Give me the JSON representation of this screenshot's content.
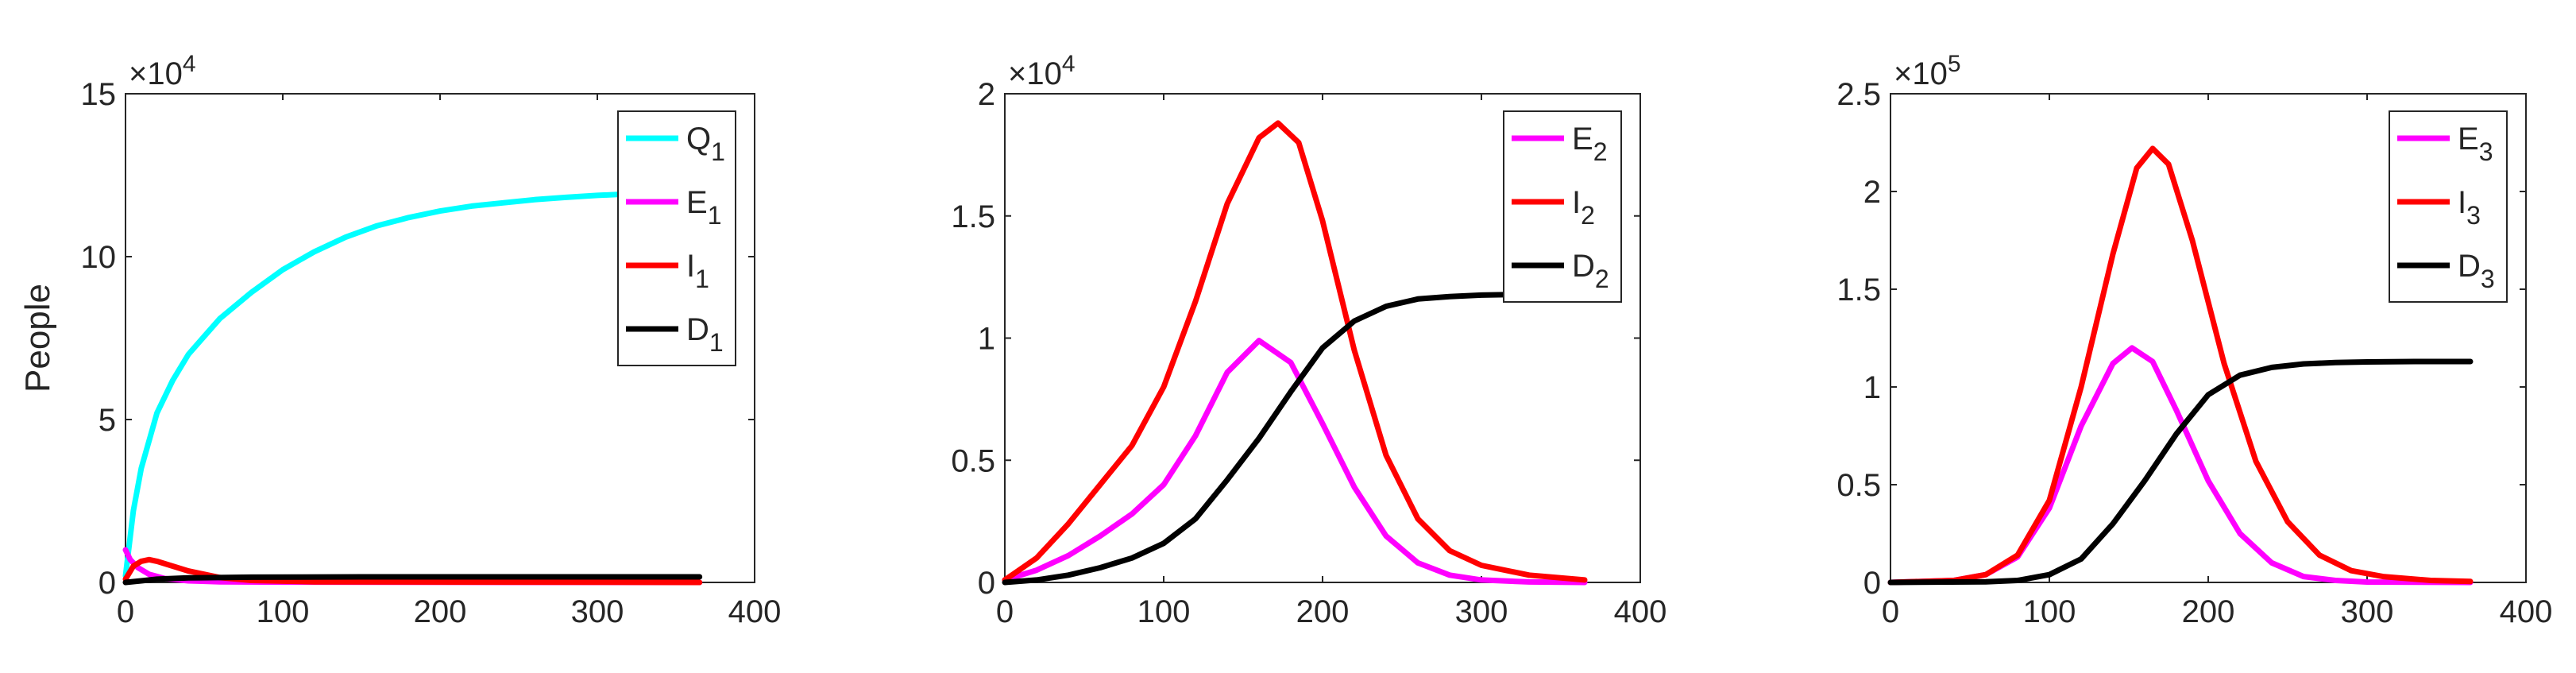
{
  "chart_data": [
    {
      "type": "line",
      "ylabel": "People",
      "xlabel": "",
      "exponent_base": "×10",
      "exponent_power": "4",
      "xlim": [
        0,
        400
      ],
      "ylim": [
        0,
        15
      ],
      "xticks": [
        "0",
        "100",
        "200",
        "300",
        "400"
      ],
      "yticks": [
        "0",
        "5",
        "10",
        "15"
      ],
      "ytick_values": [
        0,
        5,
        10,
        15
      ],
      "series": [
        {
          "name": "Q",
          "sub": "1",
          "color": "#00ffff",
          "points": [
            [
              0,
              0.2
            ],
            [
              5,
              2.2
            ],
            [
              10,
              3.5
            ],
            [
              20,
              5.2
            ],
            [
              30,
              6.2
            ],
            [
              40,
              7.0
            ],
            [
              60,
              8.1
            ],
            [
              80,
              8.9
            ],
            [
              100,
              9.6
            ],
            [
              120,
              10.15
            ],
            [
              140,
              10.6
            ],
            [
              160,
              10.95
            ],
            [
              180,
              11.2
            ],
            [
              200,
              11.4
            ],
            [
              220,
              11.55
            ],
            [
              240,
              11.65
            ],
            [
              260,
              11.75
            ],
            [
              280,
              11.82
            ],
            [
              300,
              11.88
            ],
            [
              318,
              11.92
            ]
          ]
        },
        {
          "name": "E",
          "sub": "1",
          "color": "#ff00ff",
          "points": [
            [
              0,
              1.0
            ],
            [
              3,
              0.7
            ],
            [
              8,
              0.45
            ],
            [
              15,
              0.25
            ],
            [
              25,
              0.12
            ],
            [
              40,
              0.05
            ],
            [
              60,
              0.02
            ],
            [
              100,
              0.01
            ],
            [
              365,
              0.0
            ]
          ]
        },
        {
          "name": "I",
          "sub": "1",
          "color": "#ff0000",
          "points": [
            [
              0,
              0.1
            ],
            [
              5,
              0.5
            ],
            [
              10,
              0.65
            ],
            [
              15,
              0.7
            ],
            [
              20,
              0.65
            ],
            [
              30,
              0.5
            ],
            [
              40,
              0.35
            ],
            [
              60,
              0.15
            ],
            [
              80,
              0.06
            ],
            [
              120,
              0.02
            ],
            [
              365,
              0.0
            ]
          ]
        },
        {
          "name": "D",
          "sub": "1",
          "color": "#000000",
          "points": [
            [
              0,
              0.0
            ],
            [
              10,
              0.05
            ],
            [
              20,
              0.1
            ],
            [
              40,
              0.14
            ],
            [
              80,
              0.16
            ],
            [
              150,
              0.17
            ],
            [
              365,
              0.17
            ]
          ]
        }
      ]
    },
    {
      "type": "line",
      "ylabel": "",
      "xlabel": "",
      "exponent_base": "×10",
      "exponent_power": "4",
      "xlim": [
        0,
        400
      ],
      "ylim": [
        0,
        2
      ],
      "xticks": [
        "0",
        "100",
        "200",
        "300",
        "400"
      ],
      "yticks": [
        "0",
        "0.5",
        "1",
        "1.5",
        "2"
      ],
      "ytick_values": [
        0,
        0.5,
        1,
        1.5,
        2
      ],
      "series": [
        {
          "name": "E",
          "sub": "2",
          "color": "#ff00ff",
          "points": [
            [
              0,
              0.01
            ],
            [
              20,
              0.05
            ],
            [
              40,
              0.11
            ],
            [
              60,
              0.19
            ],
            [
              80,
              0.28
            ],
            [
              100,
              0.4
            ],
            [
              120,
              0.6
            ],
            [
              140,
              0.86
            ],
            [
              160,
              0.99
            ],
            [
              180,
              0.9
            ],
            [
              200,
              0.65
            ],
            [
              220,
              0.39
            ],
            [
              240,
              0.19
            ],
            [
              260,
              0.08
            ],
            [
              280,
              0.03
            ],
            [
              300,
              0.01
            ],
            [
              330,
              0.002
            ],
            [
              365,
              0.0
            ]
          ]
        },
        {
          "name": "I",
          "sub": "2",
          "color": "#ff0000",
          "points": [
            [
              0,
              0.01
            ],
            [
              20,
              0.1
            ],
            [
              40,
              0.24
            ],
            [
              60,
              0.4
            ],
            [
              80,
              0.56
            ],
            [
              100,
              0.8
            ],
            [
              120,
              1.15
            ],
            [
              140,
              1.55
            ],
            [
              160,
              1.82
            ],
            [
              172,
              1.88
            ],
            [
              185,
              1.8
            ],
            [
              200,
              1.48
            ],
            [
              220,
              0.95
            ],
            [
              240,
              0.52
            ],
            [
              260,
              0.26
            ],
            [
              280,
              0.13
            ],
            [
              300,
              0.07
            ],
            [
              330,
              0.03
            ],
            [
              365,
              0.01
            ]
          ]
        },
        {
          "name": "D",
          "sub": "2",
          "color": "#000000",
          "points": [
            [
              0,
              0.0
            ],
            [
              20,
              0.01
            ],
            [
              40,
              0.03
            ],
            [
              60,
              0.06
            ],
            [
              80,
              0.1
            ],
            [
              100,
              0.16
            ],
            [
              120,
              0.26
            ],
            [
              140,
              0.42
            ],
            [
              160,
              0.59
            ],
            [
              180,
              0.78
            ],
            [
              200,
              0.96
            ],
            [
              220,
              1.07
            ],
            [
              240,
              1.13
            ],
            [
              260,
              1.16
            ],
            [
              280,
              1.17
            ],
            [
              300,
              1.176
            ],
            [
              318,
              1.178
            ]
          ]
        }
      ]
    },
    {
      "type": "line",
      "ylabel": "",
      "xlabel": "",
      "exponent_base": "×10",
      "exponent_power": "5",
      "xlim": [
        0,
        400
      ],
      "ylim": [
        0,
        2.5
      ],
      "xticks": [
        "0",
        "100",
        "200",
        "300",
        "400"
      ],
      "yticks": [
        "0",
        "0.5",
        "1",
        "1.5",
        "2",
        "2.5"
      ],
      "ytick_values": [
        0,
        0.5,
        1,
        1.5,
        2,
        2.5
      ],
      "series": [
        {
          "name": "E",
          "sub": "3",
          "color": "#ff00ff",
          "points": [
            [
              0,
              0.0
            ],
            [
              40,
              0.01
            ],
            [
              60,
              0.04
            ],
            [
              80,
              0.13
            ],
            [
              100,
              0.38
            ],
            [
              120,
              0.8
            ],
            [
              140,
              1.12
            ],
            [
              152,
              1.2
            ],
            [
              165,
              1.13
            ],
            [
              180,
              0.88
            ],
            [
              200,
              0.52
            ],
            [
              220,
              0.25
            ],
            [
              240,
              0.1
            ],
            [
              260,
              0.03
            ],
            [
              280,
              0.01
            ],
            [
              300,
              0.002
            ],
            [
              365,
              0.0
            ]
          ]
        },
        {
          "name": "I",
          "sub": "3",
          "color": "#ff0000",
          "points": [
            [
              0,
              0.0
            ],
            [
              40,
              0.01
            ],
            [
              60,
              0.04
            ],
            [
              80,
              0.14
            ],
            [
              100,
              0.42
            ],
            [
              120,
              1.0
            ],
            [
              140,
              1.68
            ],
            [
              155,
              2.12
            ],
            [
              165,
              2.22
            ],
            [
              175,
              2.14
            ],
            [
              190,
              1.75
            ],
            [
              210,
              1.12
            ],
            [
              230,
              0.62
            ],
            [
              250,
              0.31
            ],
            [
              270,
              0.14
            ],
            [
              290,
              0.06
            ],
            [
              310,
              0.03
            ],
            [
              340,
              0.01
            ],
            [
              365,
              0.005
            ]
          ]
        },
        {
          "name": "D",
          "sub": "3",
          "color": "#000000",
          "points": [
            [
              0,
              0.0
            ],
            [
              60,
              0.003
            ],
            [
              80,
              0.01
            ],
            [
              100,
              0.04
            ],
            [
              120,
              0.12
            ],
            [
              140,
              0.3
            ],
            [
              160,
              0.52
            ],
            [
              180,
              0.76
            ],
            [
              200,
              0.96
            ],
            [
              220,
              1.06
            ],
            [
              240,
              1.1
            ],
            [
              260,
              1.118
            ],
            [
              280,
              1.125
            ],
            [
              300,
              1.128
            ],
            [
              330,
              1.13
            ],
            [
              365,
              1.13
            ]
          ]
        }
      ]
    }
  ]
}
